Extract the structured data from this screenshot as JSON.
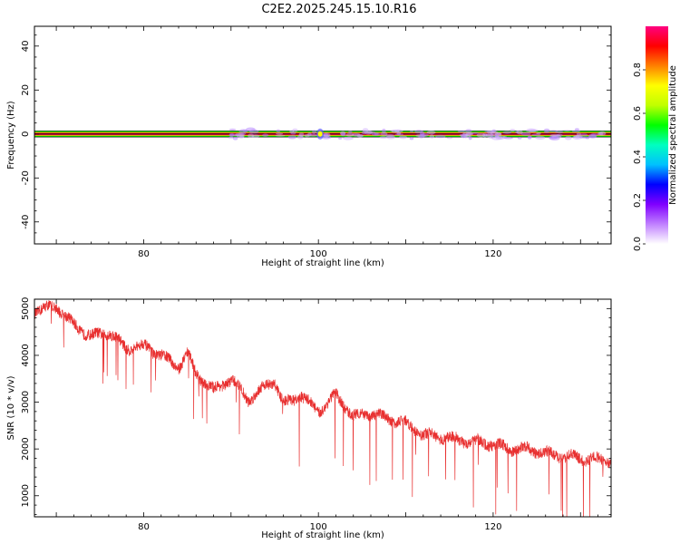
{
  "title": "C2E2.2025.245.15.10.R16",
  "chart_data": [
    {
      "type": "heatmap",
      "xlabel": "Height of straight line (km)",
      "ylabel": "Frequency (Hz)",
      "xlim": [
        67.5,
        133.5
      ],
      "ylim": [
        -50,
        49
      ],
      "xticks": [
        "80",
        "100",
        "120"
      ],
      "yticks": [
        "-40",
        "-20",
        "0",
        "20",
        "40"
      ],
      "band": {
        "center_hz": 0,
        "halfwidth_hz": 1.5
      },
      "colorbar": {
        "label": "Normalized spectral amplitude",
        "ticks": [
          "0.0",
          "0.2",
          "0.4",
          "0.6",
          "0.8"
        ],
        "range": [
          0,
          1
        ],
        "colors": [
          "#ffffff",
          "#c080ff",
          "#8000ff",
          "#0000ff",
          "#00c0ff",
          "#00ffc0",
          "#00ff00",
          "#c0ff00",
          "#ffff00",
          "#ff8000",
          "#ff0000",
          "#ff0080"
        ]
      }
    },
    {
      "type": "line",
      "xlabel": "Height of straight line (km)",
      "ylabel": "SNR (10 * v/v)",
      "xlim": [
        67.5,
        133.5
      ],
      "ylim": [
        550,
        5200
      ],
      "xticks": [
        "80",
        "100",
        "120"
      ],
      "yticks": [
        "1000",
        "2000",
        "3000",
        "4000",
        "5000"
      ],
      "color": "#e83030",
      "trend": {
        "x": [
          67.5,
          70,
          72,
          74,
          76,
          78,
          80,
          82,
          84,
          85,
          86,
          88,
          90,
          92,
          94,
          95,
          96,
          98,
          100,
          102,
          104,
          106,
          108,
          110,
          112,
          114,
          116,
          118,
          120,
          122,
          124,
          126,
          128,
          130,
          133.5
        ],
        "y": [
          4950,
          5050,
          4650,
          4400,
          4500,
          4150,
          4200,
          4000,
          3750,
          4050,
          3600,
          3250,
          3500,
          3050,
          3350,
          3450,
          2950,
          3150,
          2800,
          3150,
          2700,
          2750,
          2650,
          2550,
          2300,
          2250,
          2200,
          2150,
          2100,
          2000,
          2000,
          1900,
          1850,
          1800,
          1750
        ]
      }
    }
  ]
}
